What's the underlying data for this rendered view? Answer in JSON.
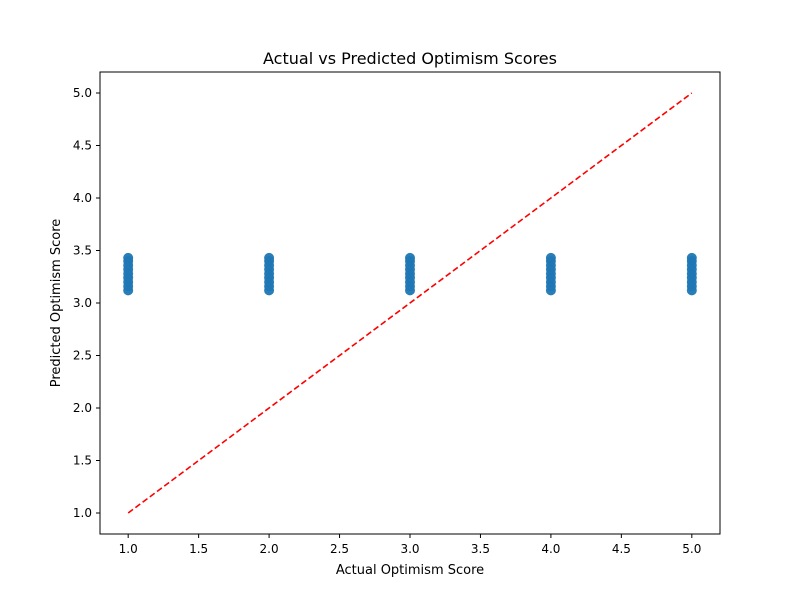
{
  "chart_data": {
    "type": "scatter",
    "title": "Actual vs Predicted Optimism Scores",
    "xlabel": "Actual Optimism Score",
    "ylabel": "Predicted Optimism Score",
    "xlim": [
      0.8,
      5.2
    ],
    "ylim": [
      0.8,
      5.2
    ],
    "x_ticks": [
      1.0,
      1.5,
      2.0,
      2.5,
      3.0,
      3.5,
      4.0,
      4.5,
      5.0
    ],
    "y_ticks": [
      1.0,
      1.5,
      2.0,
      2.5,
      3.0,
      3.5,
      4.0,
      4.5,
      5.0
    ],
    "x_tick_labels": [
      "1.0",
      "1.5",
      "2.0",
      "2.5",
      "3.0",
      "3.5",
      "4.0",
      "4.5",
      "5.0"
    ],
    "y_tick_labels": [
      "1.0",
      "1.5",
      "2.0",
      "2.5",
      "3.0",
      "3.5",
      "4.0",
      "4.5",
      "5.0"
    ],
    "grid": false,
    "marker_color": "#1f77b4",
    "reference_line": {
      "x": [
        1.0,
        5.0
      ],
      "y": [
        1.0,
        5.0
      ],
      "color": "#ff0000",
      "style": "dashed"
    },
    "points": [
      {
        "x": 1,
        "y": 3.12
      },
      {
        "x": 1,
        "y": 3.16
      },
      {
        "x": 1,
        "y": 3.2
      },
      {
        "x": 1,
        "y": 3.24
      },
      {
        "x": 1,
        "y": 3.28
      },
      {
        "x": 1,
        "y": 3.32
      },
      {
        "x": 1,
        "y": 3.36
      },
      {
        "x": 1,
        "y": 3.4
      },
      {
        "x": 1,
        "y": 3.43
      },
      {
        "x": 2,
        "y": 3.12
      },
      {
        "x": 2,
        "y": 3.16
      },
      {
        "x": 2,
        "y": 3.2
      },
      {
        "x": 2,
        "y": 3.24
      },
      {
        "x": 2,
        "y": 3.28
      },
      {
        "x": 2,
        "y": 3.32
      },
      {
        "x": 2,
        "y": 3.36
      },
      {
        "x": 2,
        "y": 3.4
      },
      {
        "x": 2,
        "y": 3.43
      },
      {
        "x": 3,
        "y": 3.12
      },
      {
        "x": 3,
        "y": 3.16
      },
      {
        "x": 3,
        "y": 3.2
      },
      {
        "x": 3,
        "y": 3.24
      },
      {
        "x": 3,
        "y": 3.28
      },
      {
        "x": 3,
        "y": 3.32
      },
      {
        "x": 3,
        "y": 3.36
      },
      {
        "x": 3,
        "y": 3.4
      },
      {
        "x": 3,
        "y": 3.43
      },
      {
        "x": 4,
        "y": 3.12
      },
      {
        "x": 4,
        "y": 3.16
      },
      {
        "x": 4,
        "y": 3.2
      },
      {
        "x": 4,
        "y": 3.24
      },
      {
        "x": 4,
        "y": 3.28
      },
      {
        "x": 4,
        "y": 3.32
      },
      {
        "x": 4,
        "y": 3.36
      },
      {
        "x": 4,
        "y": 3.4
      },
      {
        "x": 4,
        "y": 3.43
      },
      {
        "x": 5,
        "y": 3.12
      },
      {
        "x": 5,
        "y": 3.16
      },
      {
        "x": 5,
        "y": 3.2
      },
      {
        "x": 5,
        "y": 3.24
      },
      {
        "x": 5,
        "y": 3.28
      },
      {
        "x": 5,
        "y": 3.32
      },
      {
        "x": 5,
        "y": 3.36
      },
      {
        "x": 5,
        "y": 3.4
      },
      {
        "x": 5,
        "y": 3.43
      }
    ]
  }
}
